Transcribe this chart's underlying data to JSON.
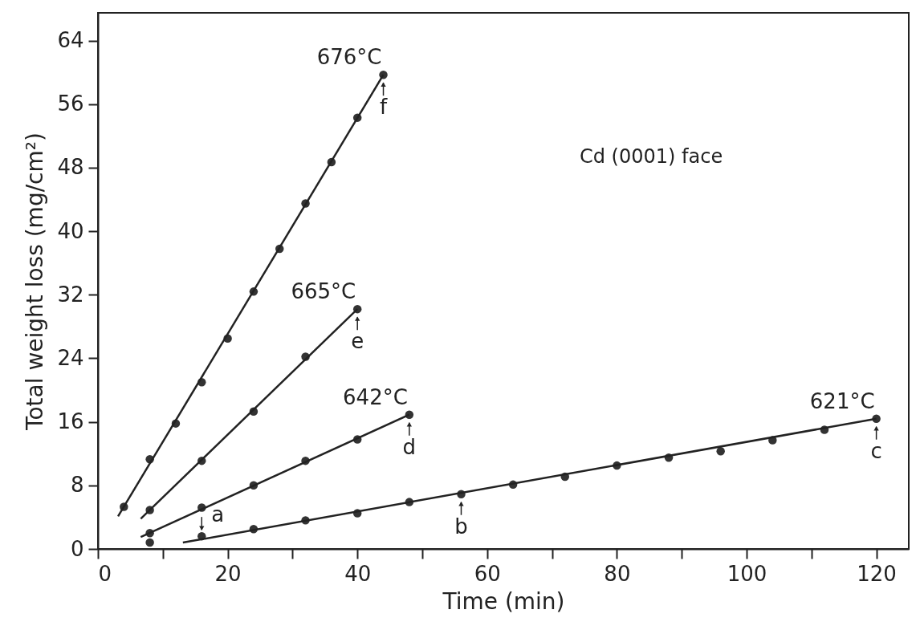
{
  "chart_data": {
    "type": "scatter",
    "xlabel": "Time  (min)",
    "ylabel": "Total weight loss (mg/cm²)",
    "xlim": [
      0,
      125
    ],
    "ylim": [
      0,
      67.5
    ],
    "xticks": [
      0,
      {
        "value": 10,
        "label": null
      },
      20,
      {
        "value": 30,
        "label": null
      },
      40,
      {
        "value": 50,
        "label": null
      },
      60,
      {
        "value": 70,
        "label": null
      },
      80,
      {
        "value": 90,
        "label": null
      },
      100,
      {
        "value": 110,
        "label": null
      },
      120
    ],
    "yticks": [
      0,
      8,
      16,
      24,
      32,
      40,
      48,
      56,
      64
    ],
    "grid": false,
    "series": [
      {
        "name": "676°C",
        "marker": "circle",
        "color": "#333333",
        "x": [
          4,
          8,
          12,
          16,
          20,
          24,
          28,
          32,
          36,
          40,
          44
        ],
        "values": [
          5.3,
          11.3,
          15.8,
          21.0,
          26.5,
          32.4,
          37.8,
          43.5,
          48.7,
          54.3,
          59.7
        ]
      },
      {
        "type": "line",
        "marker": "none",
        "color": "#222222",
        "x": [
          3.1,
          44
        ],
        "values": [
          4.1,
          59.7
        ]
      },
      {
        "name": "665°C",
        "marker": "circle",
        "color": "#333333",
        "x": [
          8,
          16,
          24,
          32,
          40
        ],
        "values": [
          4.9,
          11.1,
          17.3,
          24.2,
          30.2
        ]
      },
      {
        "type": "line",
        "marker": "none",
        "color": "#222222",
        "x": [
          6.6,
          40
        ],
        "values": [
          3.8,
          30.2
        ]
      },
      {
        "name": "642°C",
        "marker": "circle",
        "color": "#333333",
        "x": [
          8,
          16,
          24,
          32,
          40,
          48
        ],
        "values": [
          2.0,
          5.2,
          8.0,
          11.1,
          13.8,
          16.9
        ]
      },
      {
        "type": "line",
        "marker": "none",
        "color": "#222222",
        "x": [
          6.6,
          48
        ],
        "values": [
          1.5,
          16.9
        ]
      },
      {
        "name": "621°C",
        "marker": "circle",
        "color": "#333333",
        "x": [
          16,
          24,
          32,
          40,
          48,
          56,
          64,
          72,
          80,
          88,
          96,
          104,
          112,
          120
        ],
        "values": [
          1.6,
          2.5,
          3.6,
          4.5,
          5.9,
          6.9,
          8.1,
          9.1,
          10.5,
          11.5,
          12.3,
          13.7,
          15.0,
          16.4
        ]
      },
      {
        "type": "line",
        "marker": "none",
        "color": "#222222",
        "x": [
          13.1,
          120
        ],
        "values": [
          0.8,
          16.4
        ]
      },
      {
        "marker": "circle",
        "color": "#333333",
        "x": [
          8
        ],
        "values": [
          0.8
        ]
      }
    ],
    "annotations": [
      "Cd (0001) face",
      {
        "text": "a",
        "x": 16,
        "y": 1.6
      },
      {
        "text": "b",
        "x": 56,
        "y": 6.9
      },
      {
        "text": "c",
        "x": 120,
        "y": 16.4
      },
      {
        "text": "d",
        "x": 48,
        "y": 16.9
      },
      {
        "text": "e",
        "x": 40,
        "y": 30.2
      },
      {
        "text": "f",
        "x": 44,
        "y": 59.7
      }
    ]
  }
}
